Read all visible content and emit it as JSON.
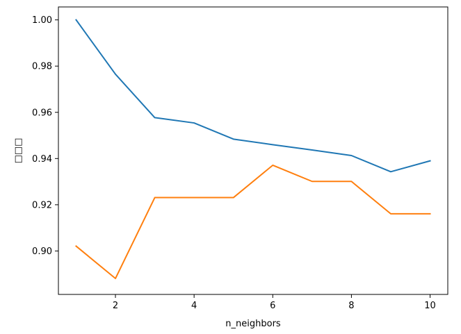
{
  "chart_data": {
    "type": "line",
    "title": "",
    "xlabel": "n_neighbors",
    "ylabel": "□□□",
    "x": [
      1,
      2,
      3,
      4,
      5,
      6,
      7,
      8,
      9,
      10
    ],
    "xlim": [
      0.55,
      10.45
    ],
    "ylim": [
      0.8812,
      1.0056
    ],
    "xticks": [
      2,
      4,
      6,
      8,
      10
    ],
    "yticks": [
      0.9,
      0.92,
      0.94,
      0.96,
      0.98,
      1.0
    ],
    "xtick_labels": [
      "2",
      "4",
      "6",
      "8",
      "10"
    ],
    "ytick_labels": [
      "0.90",
      "0.92",
      "0.94",
      "0.96",
      "0.98",
      "1.00"
    ],
    "grid": false,
    "series": [
      {
        "color": "#1f77b4",
        "values": [
          1.0,
          0.9765,
          0.9577,
          0.9554,
          0.9484,
          0.946,
          0.9437,
          0.9413,
          0.9343,
          0.939
        ]
      },
      {
        "color": "#ff7f0e",
        "values": [
          0.9021,
          0.8881,
          0.9231,
          0.9231,
          0.9231,
          0.9371,
          0.9301,
          0.9301,
          0.9161,
          0.9161
        ]
      }
    ]
  }
}
